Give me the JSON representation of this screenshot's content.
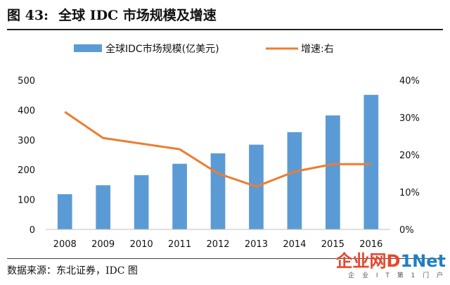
{
  "figure": {
    "label": "图  43:",
    "title": "全球 IDC 市场规模及增速",
    "source": "数据来源：东北证券，IDC 图"
  },
  "watermark": {
    "cn": "企业网",
    "d": "D",
    "inet": "1Net",
    "sub": "企 业 I T 第 1 门 户"
  },
  "chart_data": {
    "type": "bar",
    "categories": [
      "2008",
      "2009",
      "2010",
      "2011",
      "2012",
      "2013",
      "2014",
      "2015",
      "2016"
    ],
    "series": [
      {
        "name": "全球IDC市场规模(亿美元)",
        "type": "bar",
        "axis": "left",
        "values": [
          118,
          148,
          182,
          220,
          255,
          284,
          326,
          382,
          451
        ],
        "color": "#5b9bd5"
      },
      {
        "name": "增速:右",
        "type": "line",
        "axis": "right",
        "values": [
          31.5,
          24.5,
          23.0,
          21.5,
          15.0,
          11.5,
          15.5,
          17.5,
          17.5
        ],
        "color": "#ed7d31"
      }
    ],
    "ylim_left": [
      0,
      500
    ],
    "ylim_right": [
      0,
      40
    ],
    "yticks_left": [
      "0",
      "100",
      "200",
      "300",
      "400",
      "500"
    ],
    "yticks_right": [
      "0%",
      "10%",
      "20%",
      "30%",
      "40%"
    ],
    "legend_position": "top",
    "grid": false
  }
}
